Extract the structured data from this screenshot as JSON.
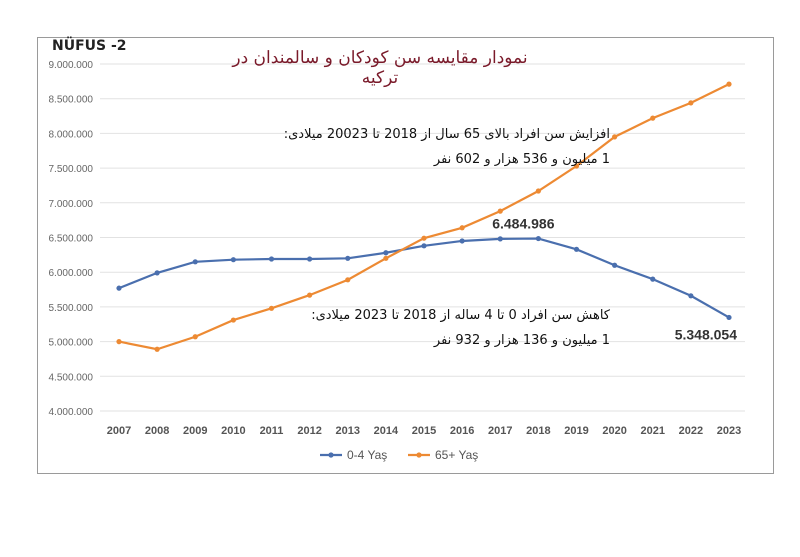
{
  "chart_data": {
    "type": "line",
    "title": "نمودار مقایسه سن کودکان و سالمندان در ترکیه",
    "corner_label": "NÜFUS -2",
    "x": [
      "2007",
      "2008",
      "2009",
      "2010",
      "2011",
      "2012",
      "2013",
      "2014",
      "2015",
      "2016",
      "2017",
      "2018",
      "2019",
      "2020",
      "2021",
      "2022",
      "2023"
    ],
    "ylim": [
      4000000,
      9000000
    ],
    "yticks": [
      "4.000.000",
      "4.500.000",
      "5.000.000",
      "5.500.000",
      "6.000.000",
      "6.500.000",
      "7.000.000",
      "7.500.000",
      "8.000.000",
      "8.500.000",
      "9.000.000"
    ],
    "grid": true,
    "legend_position": "bottom",
    "series": [
      {
        "name": "0-4 Yaş",
        "color": "#4a6fae",
        "values": [
          5770000,
          5990000,
          6150000,
          6180000,
          6190000,
          6190000,
          6200000,
          6280000,
          6380000,
          6450000,
          6480000,
          6484986,
          6330000,
          6100000,
          5900000,
          5660000,
          5348054
        ]
      },
      {
        "name": "65+ Yaş",
        "color": "#ed8a33",
        "values": [
          5000000,
          4890000,
          5070000,
          5310000,
          5480000,
          5670000,
          5890000,
          6200000,
          6490000,
          6640000,
          6880000,
          7170000,
          7530000,
          7950000,
          8220000,
          8440000,
          8710000
        ]
      }
    ],
    "data_labels": [
      {
        "series": 0,
        "x": "2018",
        "text": "6.484.986"
      },
      {
        "series": 0,
        "x": "2023",
        "text": "5.348.054"
      }
    ],
    "annotations": [
      {
        "line1": "افزایش سن افراد بالای 65 سال از 2018 تا 20023 میلادی:",
        "line2": "1 میلیون و 536 هزار و 602 نفر"
      },
      {
        "line1": "کاهش سن افراد 0 تا 4 ساله از 2018 تا 2023 میلادی:",
        "line2": "1 میلیون و 136 هزار و 932 نفر"
      }
    ]
  }
}
